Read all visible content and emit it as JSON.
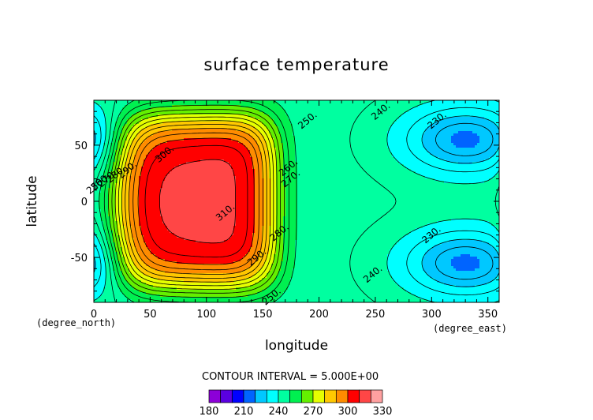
{
  "chart_data": {
    "type": "heatmap",
    "title": "surface temperature",
    "xlabel": "longitude",
    "ylabel": "latitude",
    "x_unit_label": "(degree_east)",
    "y_unit_label": "(degree_north)",
    "xlim": [
      0,
      360
    ],
    "ylim": [
      -90,
      90
    ],
    "x_ticks": [
      0,
      50,
      100,
      150,
      200,
      250,
      300,
      350
    ],
    "y_ticks": [
      -50,
      0,
      50
    ],
    "contour_interval_text": "CONTOUR INTERVAL = 5.000E+00",
    "contour_interval": 5,
    "colorbar": {
      "levels": [
        180,
        190,
        200,
        210,
        220,
        230,
        240,
        250,
        260,
        270,
        280,
        290,
        300,
        310,
        320,
        330
      ],
      "tick_labels": [
        "180",
        "210",
        "240",
        "270",
        "300",
        "330"
      ],
      "colors": [
        "#8c00d8",
        "#5a00e0",
        "#0000ff",
        "#0064ff",
        "#00c8ff",
        "#00ffff",
        "#00ffa0",
        "#00f050",
        "#64f000",
        "#e6ff00",
        "#ffc800",
        "#ff8c00",
        "#ff0000",
        "#ff4646",
        "#ffa0a0"
      ]
    },
    "contour_labels": [
      {
        "text": "300.",
        "lon": 63,
        "lat": 42
      },
      {
        "text": "310.",
        "lon": 117,
        "lat": -10
      },
      {
        "text": "290.",
        "lon": 145,
        "lat": -50
      },
      {
        "text": "280.",
        "lon": 165,
        "lat": -28
      },
      {
        "text": "270.",
        "lon": 175,
        "lat": 20
      },
      {
        "text": "260.",
        "lon": 173,
        "lat": 30
      },
      {
        "text": "250.",
        "lon": 190,
        "lat": 72
      },
      {
        "text": "250.",
        "lon": 158,
        "lat": -85
      },
      {
        "text": "240.",
        "lon": 255,
        "lat": 80
      },
      {
        "text": "240.",
        "lon": 248,
        "lat": -65
      },
      {
        "text": "230.",
        "lon": 305,
        "lat": 72
      },
      {
        "text": "230.",
        "lon": 300,
        "lat": -30
      },
      {
        "text": "290.",
        "lon": 30,
        "lat": 28
      },
      {
        "text": "280.",
        "lon": 20,
        "lat": 24
      },
      {
        "text": "270.",
        "lon": 12,
        "lat": 20
      },
      {
        "text": "260.",
        "lon": 6,
        "lat": 17
      },
      {
        "text": "250.",
        "lon": 2,
        "lat": 14
      }
    ],
    "features": {
      "warm_center": {
        "lon": 90,
        "lat": 0,
        "value": 310
      },
      "cold_centers": [
        {
          "lon": 330,
          "lat": 55,
          "value": 220
        },
        {
          "lon": 330,
          "lat": -55,
          "value": 220
        }
      ]
    }
  }
}
